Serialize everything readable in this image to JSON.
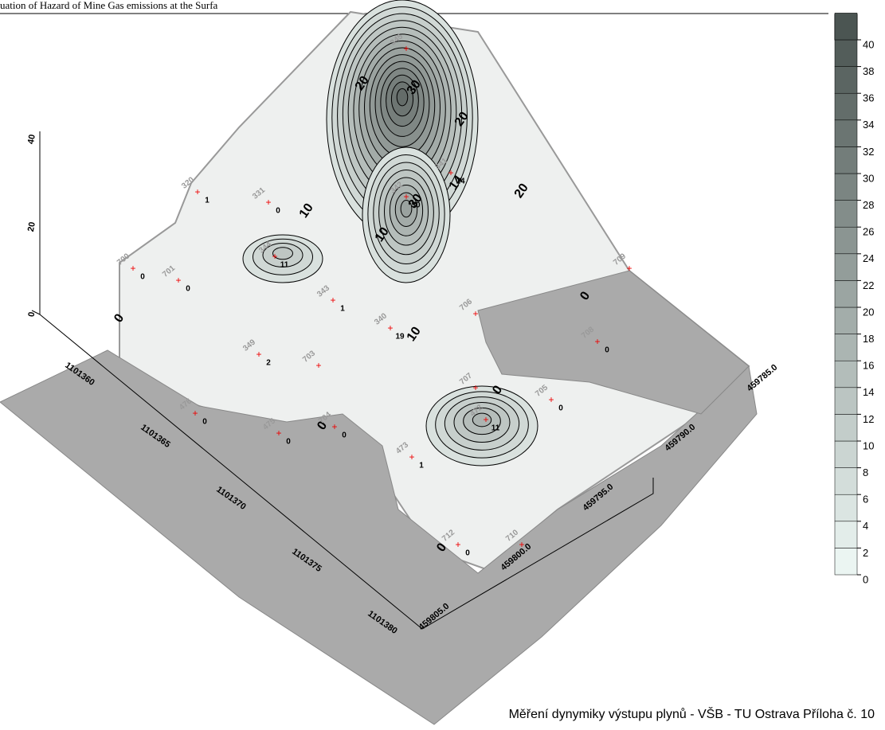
{
  "header": {
    "title": "uation of Hazard of Mine Gas emissions at the Surfa"
  },
  "footer": {
    "text": "Měření dynymiky výstupu plynů - VŠB - TU Ostrava  Příloha č. 10"
  },
  "color_scale": {
    "ticks": [
      0,
      2,
      4,
      6,
      8,
      10,
      12,
      14,
      16,
      18,
      20,
      22,
      24,
      26,
      28,
      30,
      32,
      34,
      36,
      38,
      40
    ]
  },
  "z_axis": {
    "ticks": [
      0,
      20,
      40
    ]
  },
  "x_axis": {
    "ticks": [
      "1101360",
      "1101365",
      "1101370",
      "1101375",
      "1101380"
    ]
  },
  "y_axis": {
    "ticks": [
      "459805.0",
      "459800.0",
      "459795.0",
      "459790.0",
      "459785.0"
    ]
  },
  "contour_labels": [
    "20",
    "30",
    "20",
    "10",
    "10",
    "20",
    "10",
    "0",
    "0",
    "0",
    "0",
    "0",
    "14",
    "30"
  ],
  "stations": [
    {
      "id": "320",
      "value": 1
    },
    {
      "id": "331",
      "value": 0
    },
    {
      "id": "700",
      "value": 0
    },
    {
      "id": "701",
      "value": 0
    },
    {
      "id": "344",
      "value": 11
    },
    {
      "id": "343",
      "value": 1
    },
    {
      "id": "340",
      "value": 19
    },
    {
      "id": "342",
      "value": 30
    },
    {
      "id": "345"
    },
    {
      "id": "341",
      "value": 14
    },
    {
      "id": "706"
    },
    {
      "id": "708",
      "value": 0
    },
    {
      "id": "707"
    },
    {
      "id": "705",
      "value": 0
    },
    {
      "id": "476",
      "value": 0
    },
    {
      "id": "475",
      "value": 0
    },
    {
      "id": "704",
      "value": 0
    },
    {
      "id": "703"
    },
    {
      "id": "349",
      "value": 2
    },
    {
      "id": "473",
      "value": 1
    },
    {
      "id": "472",
      "value": 11
    },
    {
      "id": "712",
      "value": 0
    },
    {
      "id": "710"
    },
    {
      "id": "709"
    }
  ]
}
